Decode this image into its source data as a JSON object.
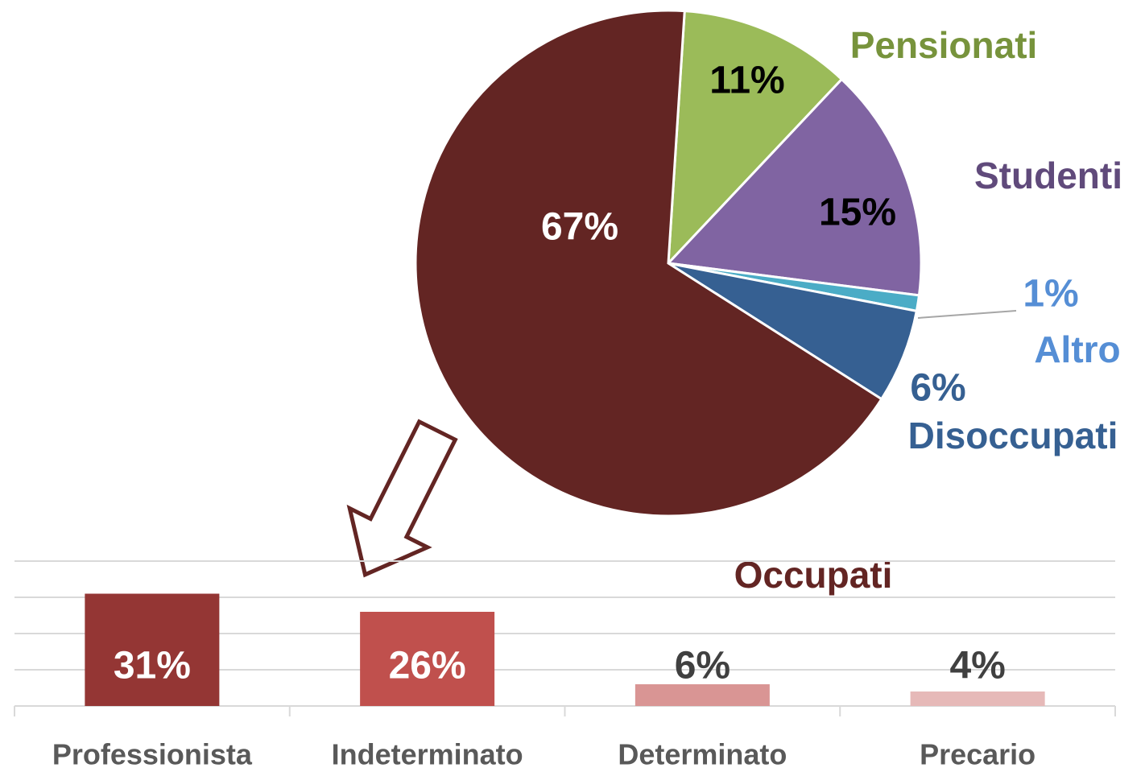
{
  "chart_data": [
    {
      "type": "pie",
      "categories": [
        "Pensionati",
        "Studenti",
        "Altro",
        "Disoccupati",
        "Occupati"
      ],
      "values": [
        11,
        15,
        1,
        6,
        67
      ],
      "value_labels": [
        "11%",
        "15%",
        "1%",
        "6%",
        "67%"
      ],
      "colors": [
        "#9bbb59",
        "#8064a2",
        "#4bacc6",
        "#366092",
        "#632523"
      ],
      "label_colors": [
        "#77933c",
        "#604a7b",
        "#558ed5",
        "#366092",
        "#632523"
      ],
      "value_label_colors": [
        "#000000",
        "#000000",
        "#558ed5",
        "#366092",
        "#ffffff"
      ]
    },
    {
      "type": "bar",
      "categories": [
        "Professionista",
        "Indeterminato",
        "Determinato",
        "Precario"
      ],
      "values": [
        31,
        26,
        6,
        4
      ],
      "value_labels": [
        "31%",
        "26%",
        "6%",
        "4%"
      ],
      "colors": [
        "#943634",
        "#c0504d",
        "#d99594",
        "#e6b9b8"
      ],
      "label_colors": [
        "#ffffff",
        "#ffffff",
        "#404040",
        "#404040"
      ],
      "ylim": [
        0,
        40
      ],
      "yticks": [
        0,
        10,
        20,
        30,
        40
      ],
      "grid": true
    }
  ]
}
